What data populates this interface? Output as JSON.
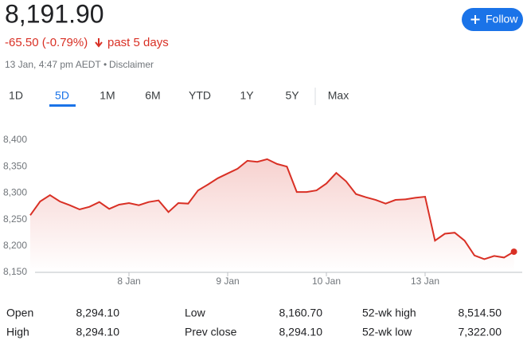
{
  "header": {
    "price": "8,191.90",
    "change": "-65.50 (-0.79%)",
    "period": "past 5 days",
    "timestamp": "13 Jan, 4:47 pm AEDT",
    "separator": "•",
    "disclaimer": "Disclaimer",
    "follow": "Follow"
  },
  "tabs": [
    "1D",
    "5D",
    "1M",
    "6M",
    "YTD",
    "1Y",
    "5Y",
    "Max"
  ],
  "chart_data": {
    "type": "line",
    "color": "#d93025",
    "categories": [
      null,
      null,
      null,
      null,
      null,
      null,
      null,
      null,
      null,
      null,
      "8 Jan",
      null,
      null,
      null,
      null,
      null,
      null,
      null,
      null,
      null,
      "9 Jan",
      null,
      null,
      null,
      null,
      null,
      null,
      null,
      null,
      null,
      "10 Jan",
      null,
      null,
      null,
      null,
      null,
      null,
      null,
      null,
      null,
      "13 Jan",
      null,
      null,
      null,
      null,
      null,
      null,
      null,
      null,
      null
    ],
    "values": [
      8258,
      8284,
      8296,
      8284,
      8277,
      8269,
      8274,
      8283,
      8270,
      8278,
      8281,
      8277,
      8283,
      8286,
      8264,
      8281,
      8280,
      8305,
      8316,
      8328,
      8337,
      8346,
      8361,
      8359,
      8364,
      8355,
      8350,
      8302,
      8302,
      8305,
      8318,
      8338,
      8322,
      8298,
      8292,
      8287,
      8280,
      8287,
      8288,
      8291,
      8293,
      8210,
      8223,
      8225,
      8210,
      8182,
      8175,
      8181,
      8178,
      8189
    ],
    "ylim": [
      8150,
      8425
    ],
    "yticks": [
      {
        "value": 8150,
        "label": "8,150"
      },
      {
        "value": 8200,
        "label": "8,200"
      },
      {
        "value": 8250,
        "label": "8,250"
      },
      {
        "value": 8300,
        "label": "8,300"
      },
      {
        "value": 8350,
        "label": "8,350"
      },
      {
        "value": 8400,
        "label": "8,400"
      }
    ]
  },
  "stats": [
    [
      "Open",
      "8,294.10"
    ],
    [
      "High",
      "8,294.10"
    ],
    [
      "Low",
      "8,160.70"
    ],
    [
      "Prev close",
      "8,294.10"
    ],
    [
      "52-wk high",
      "8,514.50"
    ],
    [
      "52-wk low",
      "7,322.00"
    ]
  ]
}
